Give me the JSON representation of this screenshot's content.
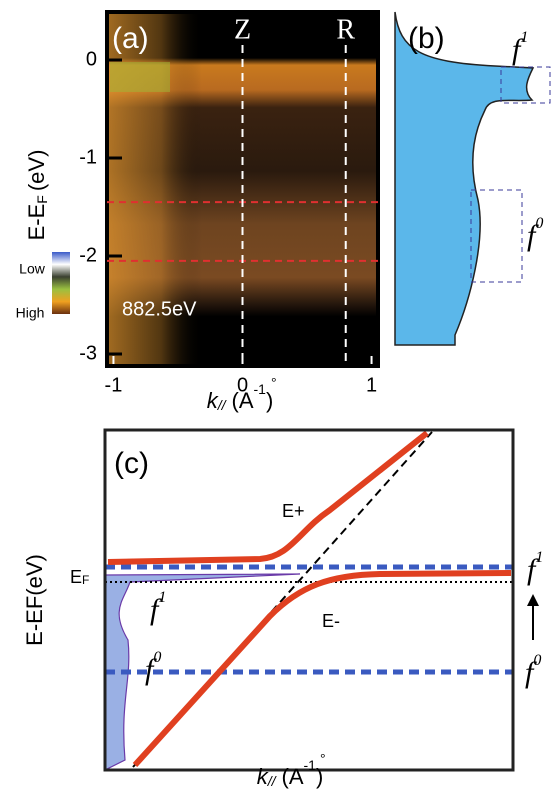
{
  "chart_data": [
    {
      "type": "image",
      "label": "(a)",
      "annotation": "882.5eV",
      "ylabel": "E-E",
      "ylabel_sub": "F",
      "ylabel_unit": "(eV)",
      "xlabel": "k",
      "xlabel_sub": "//",
      "xlabel_unit_open": "(A",
      "xlabel_ring": "°",
      "xlabel_exp": "-1",
      "xlabel_unit_close": ")",
      "xlim": [
        -1.05,
        1.05
      ],
      "ylim": [
        -3,
        0.5
      ],
      "xticks": [
        -1,
        0,
        1
      ],
      "yticks": [
        0,
        -1,
        -2,
        -3
      ],
      "markers": [
        {
          "label": "Z",
          "k": 0
        },
        {
          "label": "R",
          "k": 0.8
        }
      ],
      "red_lines": [
        -1.45,
        -2.05
      ],
      "colorbar": {
        "low": "Low",
        "high": "High"
      }
    },
    {
      "type": "area",
      "label": "(b)",
      "peaks": [
        {
          "name": "f",
          "sup": "1"
        },
        {
          "name": "f",
          "sup": "0"
        }
      ]
    },
    {
      "type": "schematic",
      "label": "(c)",
      "ylabel": "E-EF(eV)",
      "ef": "E",
      "ef_sub": "F",
      "upper": "E+",
      "lower": "E-",
      "levels": [
        {
          "name": "f",
          "sup": "1"
        },
        {
          "name": "f",
          "sup": "0"
        }
      ],
      "xlabel": "k",
      "xlabel_sub": "//",
      "xlabel_unit_open": "(A",
      "xlabel_ring": "°",
      "xlabel_exp": "-1",
      "xlabel_unit_close": ")"
    }
  ]
}
